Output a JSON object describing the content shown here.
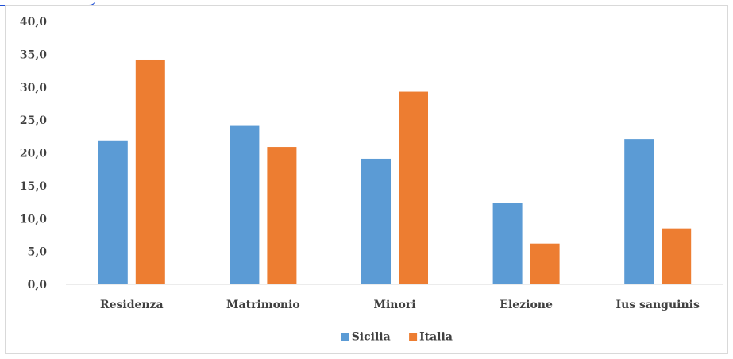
{
  "chart_data": {
    "type": "bar",
    "categories": [
      "Residenza",
      "Matrimonio",
      "Minori",
      "Elezione",
      "Ius sanguinis"
    ],
    "series": [
      {
        "name": "Sicilia",
        "color": "#5b9bd5",
        "values": [
          21.9,
          24.1,
          19.1,
          12.4,
          22.1
        ]
      },
      {
        "name": "Italia",
        "color": "#ed7d31",
        "values": [
          34.2,
          20.9,
          29.3,
          6.2,
          8.5
        ]
      }
    ],
    "ylim": [
      0,
      40
    ],
    "yticks": [
      "0,0",
      "5,0",
      "10,0",
      "15,0",
      "20,0",
      "25,0",
      "30,0",
      "35,0",
      "40,0"
    ],
    "grid": false,
    "legend_position": "bottom"
  }
}
